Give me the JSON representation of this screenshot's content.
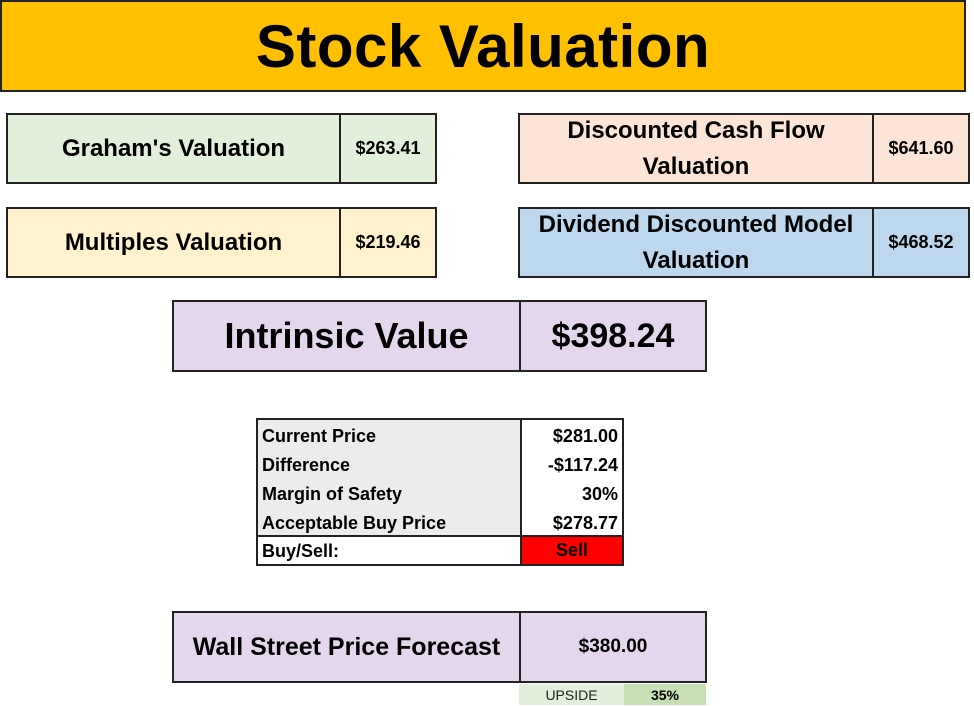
{
  "title": "Stock Valuation",
  "valuations": {
    "graham": {
      "label": "Graham's Valuation",
      "value": "$263.41"
    },
    "multiples": {
      "label": "Multiples Valuation",
      "value": "$219.46"
    },
    "dcf": {
      "label": "Discounted Cash Flow Valuation",
      "value": "$641.60"
    },
    "ddm": {
      "label": "Dividend Discounted Model Valuation",
      "value": "$468.52"
    }
  },
  "intrinsic": {
    "label": "Intrinsic Value",
    "value": "$398.24"
  },
  "summary": {
    "rows": [
      {
        "label": "Current Price",
        "value": "$281.00"
      },
      {
        "label": "Difference",
        "value": "-$117.24"
      },
      {
        "label": "Margin of Safety",
        "value": "30%"
      },
      {
        "label": "Acceptable Buy Price",
        "value": "$278.77"
      }
    ],
    "signal_label": "Buy/Sell:",
    "signal_value": "Sell"
  },
  "forecast": {
    "label": "Wall Street Price Forecast",
    "value": "$380.00",
    "upside_label": "UPSIDE",
    "upside_value": "35%"
  },
  "colors": {
    "title_bg": "#ffc000",
    "graham_bg": "#e2efda",
    "multiples_bg": "#fff2cc",
    "dcf_bg": "#fce4d6",
    "ddm_bg": "#bdd7ee",
    "intrinsic_bg": "#e4d6ec",
    "sell_bg": "#ff0000",
    "upside_value_bg": "#c6e0b4"
  }
}
